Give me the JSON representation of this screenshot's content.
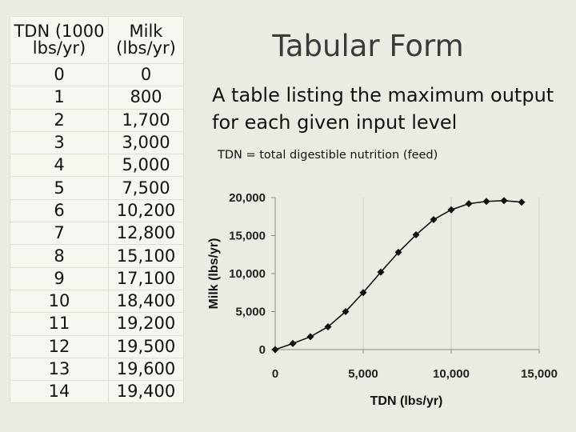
{
  "table": {
    "header": {
      "col1": "TDN  (1000 lbs/yr)",
      "col2": "Milk (lbs/yr)"
    },
    "rows": [
      {
        "tdn": "0",
        "milk": "0"
      },
      {
        "tdn": "1",
        "milk": "800"
      },
      {
        "tdn": "2",
        "milk": "1,700"
      },
      {
        "tdn": "3",
        "milk": "3,000"
      },
      {
        "tdn": "4",
        "milk": "5,000"
      },
      {
        "tdn": "5",
        "milk": "7,500"
      },
      {
        "tdn": "6",
        "milk": "10,200"
      },
      {
        "tdn": "7",
        "milk": "12,800"
      },
      {
        "tdn": "8",
        "milk": "15,100"
      },
      {
        "tdn": "9",
        "milk": "17,100"
      },
      {
        "tdn": "10",
        "milk": "18,400"
      },
      {
        "tdn": "11",
        "milk": "19,200"
      },
      {
        "tdn": "12",
        "milk": "19,500"
      },
      {
        "tdn": "13",
        "milk": "19,600"
      },
      {
        "tdn": "14",
        "milk": "19,400"
      }
    ]
  },
  "title": "Tabular Form",
  "description": "A table listing the maximum output for each given input level",
  "note": "TDN = total digestible nutrition (feed)",
  "chart_data": {
    "type": "line",
    "xlabel": "TDN (lbs/yr)",
    "ylabel": "Milk (lbs/yr)",
    "xlim": [
      0,
      15000
    ],
    "ylim": [
      0,
      20000
    ],
    "xticks": [
      "0",
      "5,000",
      "10,000",
      "15,000"
    ],
    "yticks": [
      "0",
      "5,000",
      "10,000",
      "15,000",
      "20,000"
    ],
    "grid": "vertical",
    "marker": "diamond",
    "x": [
      0,
      1000,
      2000,
      3000,
      4000,
      5000,
      6000,
      7000,
      8000,
      9000,
      10000,
      11000,
      12000,
      13000,
      14000
    ],
    "y": [
      0,
      800,
      1700,
      3000,
      5000,
      7500,
      10200,
      12800,
      15100,
      17100,
      18400,
      19200,
      19500,
      19600,
      19400
    ]
  },
  "colors": {
    "background": "#ecebe3",
    "table_cell": "#f7f7f2",
    "title": "#3a3a3a"
  }
}
